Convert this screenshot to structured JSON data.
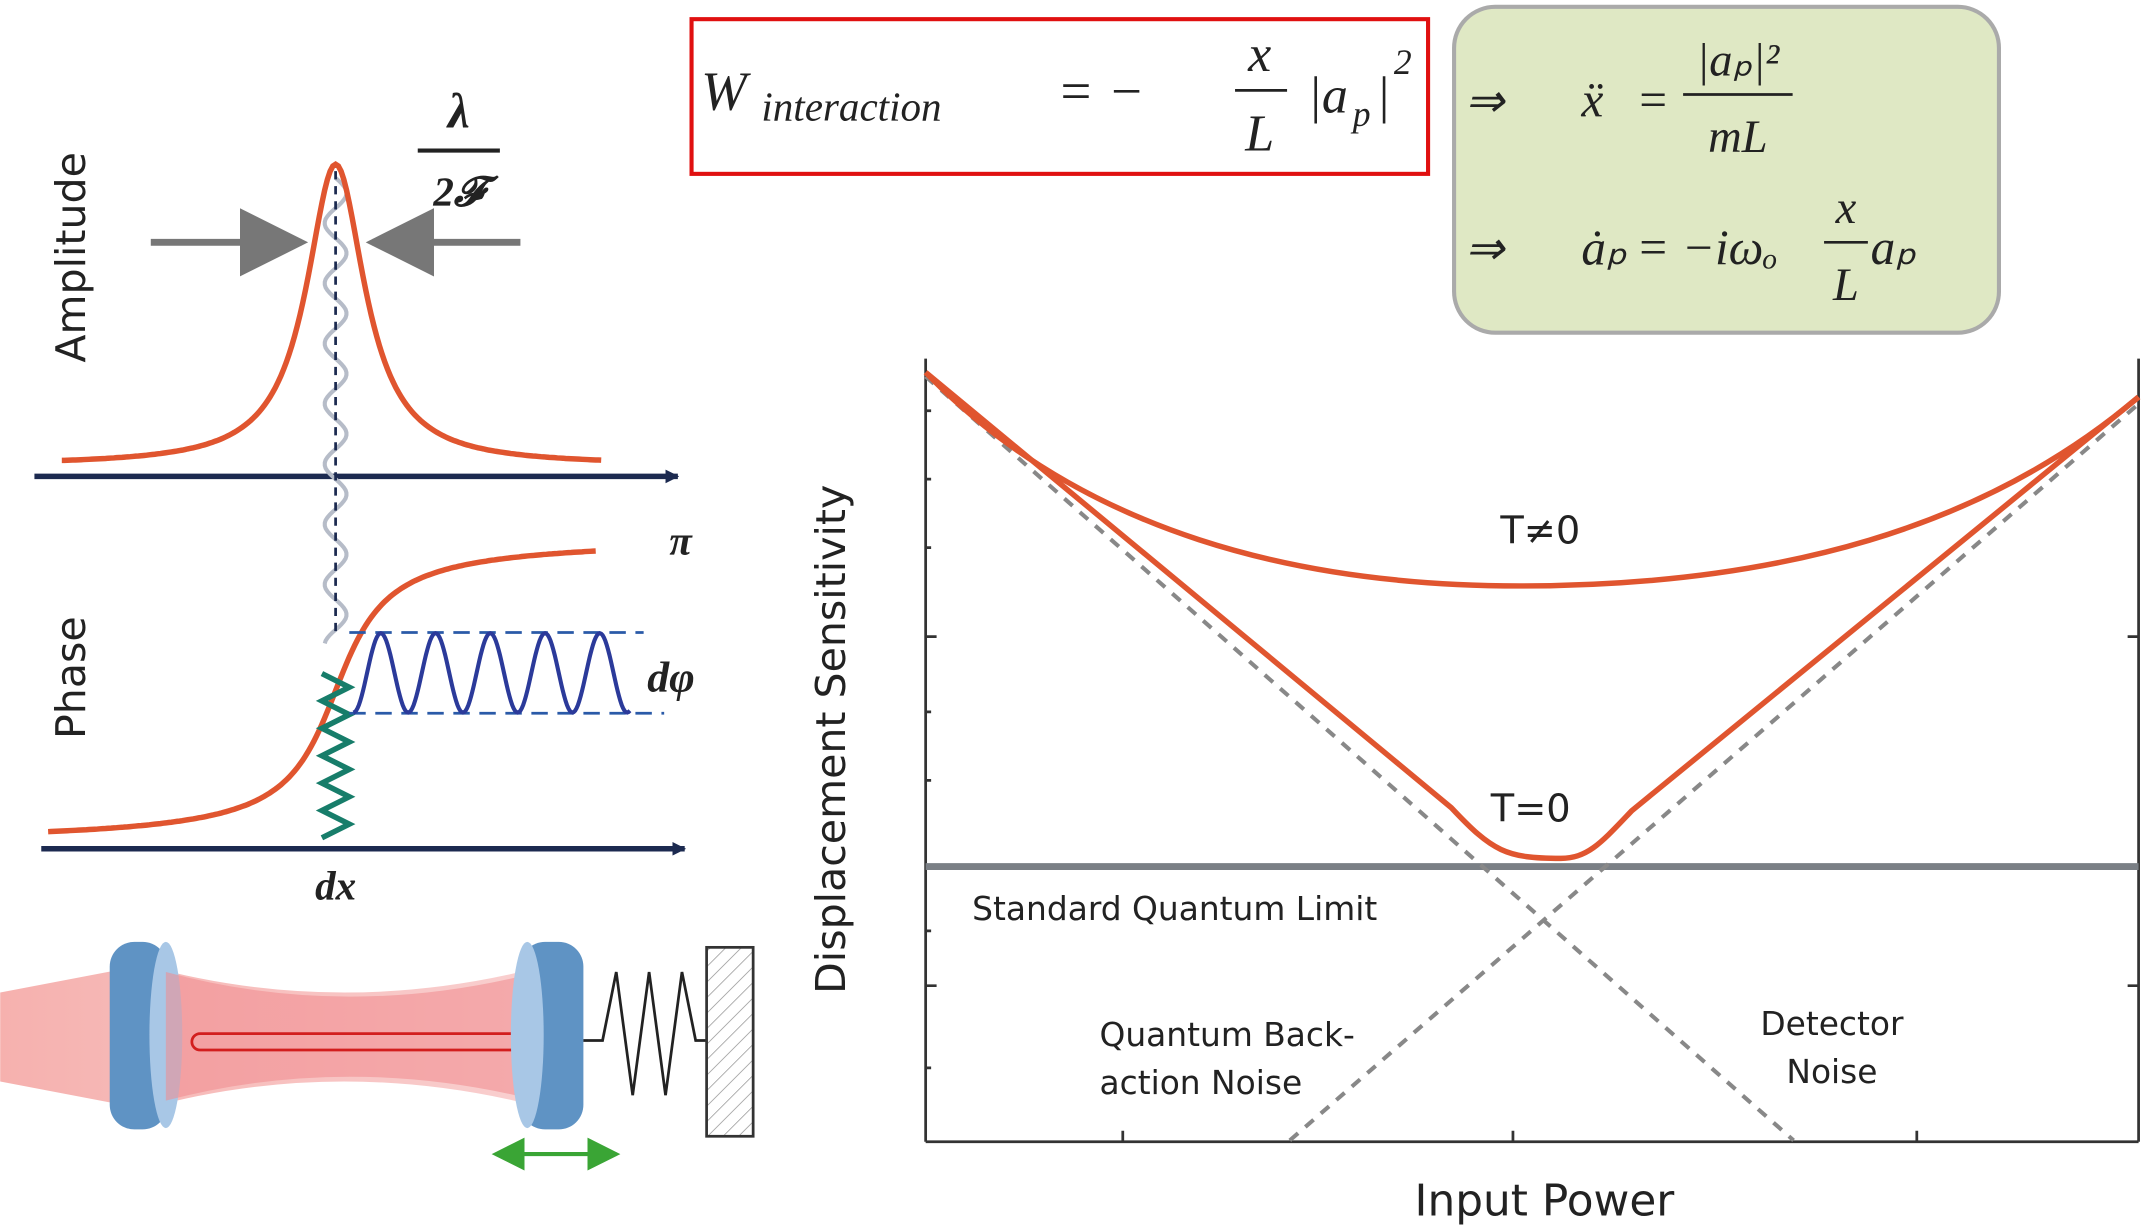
{
  "left_figure": {
    "amplitude_label": "Amplitude",
    "phase_label": "Phase",
    "linewidth": {
      "numerator": "λ",
      "denominator": "2𝓕"
    },
    "phase_max": "π",
    "phase_shift": "dφ",
    "displacement": "dx"
  },
  "interaction_energy": {
    "symbol": "W",
    "subscript": "interaction",
    "operator": "= −",
    "numerator": "x",
    "denominator": "L",
    "term": "|a",
    "term_sub": "p",
    "term_close": "|",
    "power": "2"
  },
  "equations_of_motion": [
    {
      "arrow": "⇒",
      "lhs": "ẍ",
      "operator": "=",
      "numerator": "|aₚ|²",
      "denominator": "mL",
      "tail": ""
    },
    {
      "arrow": "⇒",
      "lhs": "ȧₚ",
      "operator": "= −iωₒ",
      "numerator": "x",
      "denominator": "L",
      "tail": "aₚ"
    }
  ],
  "sensitivity_plot": {
    "y_label": "Displacement Sensitivity",
    "x_label": "Input Power",
    "curve_thermal": "T≠0",
    "curve_zero": "T=0",
    "limit_label": "Standard Quantum Limit",
    "backaction_label": [
      "Quantum Back-",
      "action Noise"
    ],
    "detector_label": [
      "Detector",
      "Noise"
    ]
  }
}
